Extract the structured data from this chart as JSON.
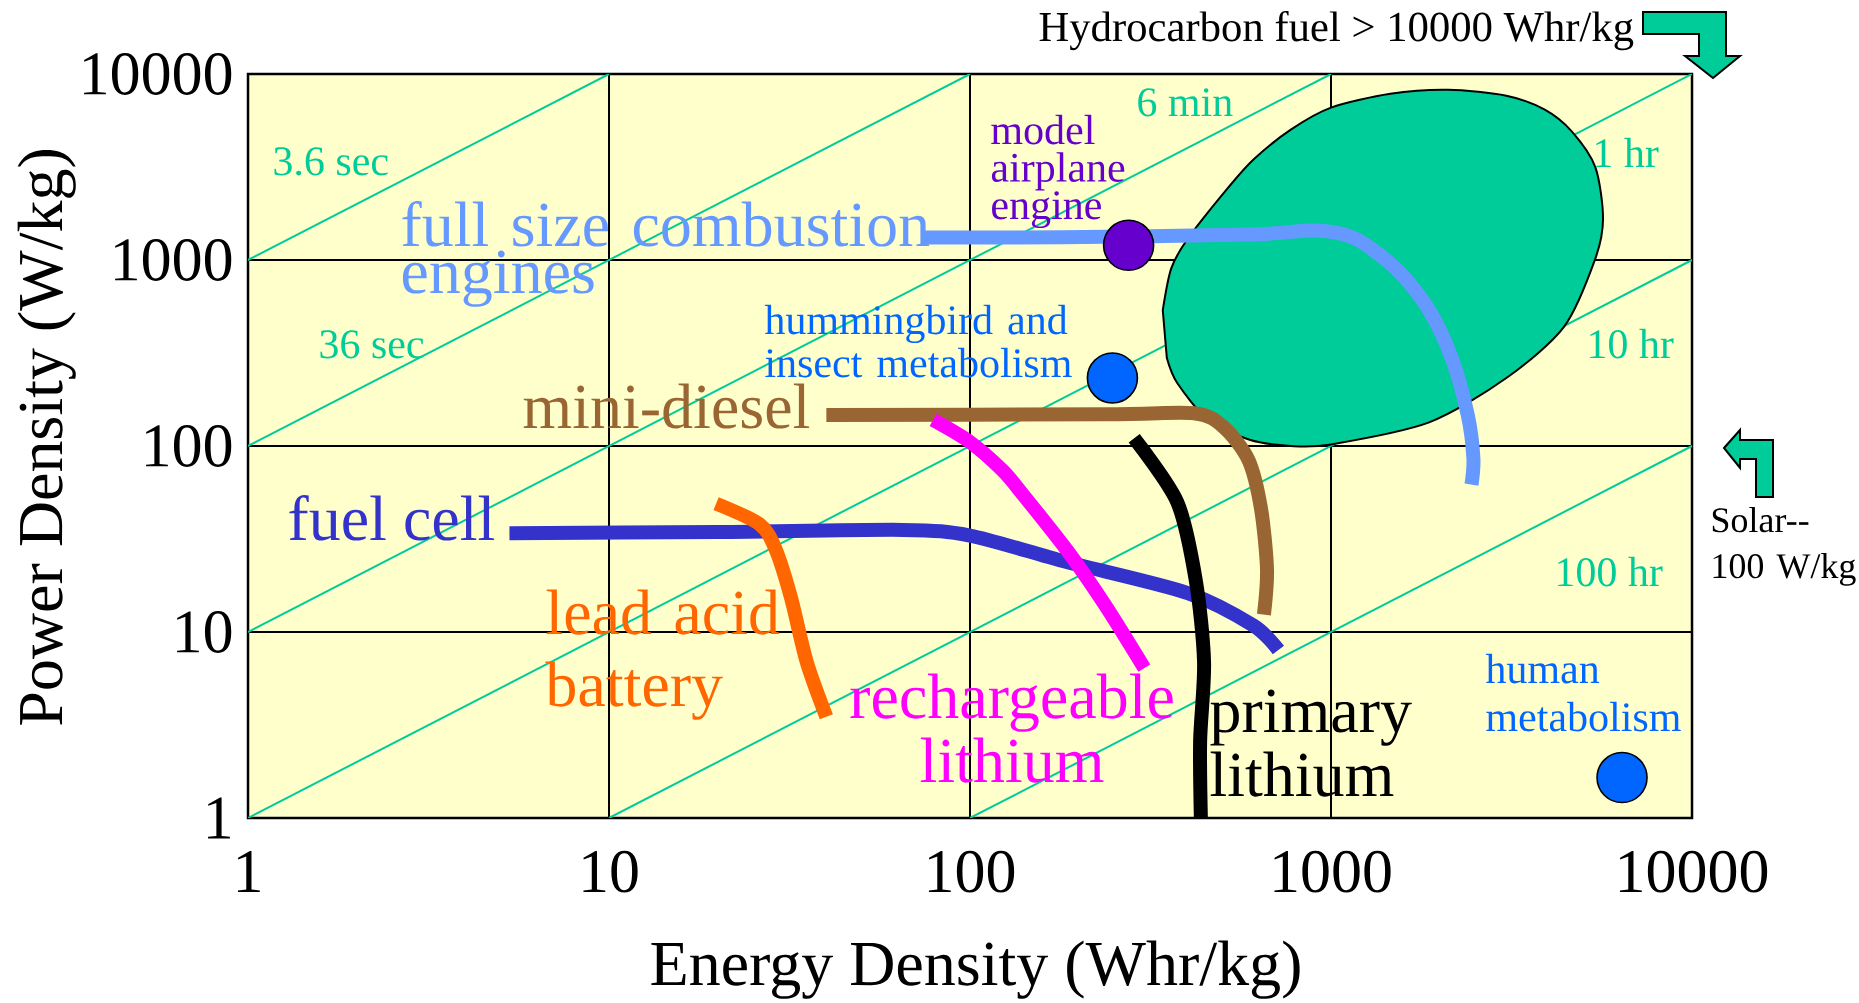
{
  "chart_data": {
    "type": "line",
    "xlabel": "Energy Density (Whr/kg)",
    "ylabel": "Power Density (W/kg)",
    "log": "xy",
    "xlim": [
      1,
      10000
    ],
    "ylim": [
      1,
      10000
    ],
    "xticks": [
      1,
      10,
      100,
      1000,
      10000
    ],
    "yticks": [
      1,
      10,
      100,
      1000,
      10000
    ],
    "grid": true,
    "annotations": [
      "Hydrocarbon fuel > 10000 Whr/kg",
      "Solar-- 100 W/kg"
    ],
    "series": [
      {
        "name": "3.6 sec",
        "color": "#00cc99",
        "x": [
          1,
          10
        ],
        "values": [
          1000,
          10000
        ]
      },
      {
        "name": "36 sec",
        "color": "#00cc99",
        "x": [
          1,
          100
        ],
        "values": [
          100,
          10000
        ]
      },
      {
        "name": "6 min",
        "color": "#00cc99",
        "x": [
          1,
          1000
        ],
        "values": [
          10,
          10000
        ]
      },
      {
        "name": "1 hr",
        "color": "#00cc99",
        "x": [
          1,
          10000
        ],
        "values": [
          1,
          10000
        ]
      },
      {
        "name": "10 hr",
        "color": "#00cc99",
        "x": [
          10,
          10000
        ],
        "values": [
          1,
          1000
        ]
      },
      {
        "name": "100 hr",
        "color": "#00cc99",
        "x": [
          100,
          10000
        ],
        "values": [
          1,
          100
        ]
      },
      {
        "type": "area",
        "color": "#00cc99",
        "x": [
          342,
          361,
          401,
          521,
          611,
          774,
          1000,
          1460,
          2110,
          3060,
          3910,
          4650,
          5400,
          5670,
          5400,
          4430,
          3060,
          1870,
          1000,
          774,
          595,
          457,
          375,
          351
        ],
        "values": [
          537,
          901,
          1300,
          2470,
          3480,
          5020,
          6590,
          7820,
          8220,
          7640,
          6430,
          4900,
          3150,
          1670,
          1020,
          440,
          232,
          134,
          102,
          100,
          108,
          138,
          218,
          297
        ]
      },
      {
        "name": "fuel cell",
        "color": "#3333cc",
        "x": [
          5.3,
          20,
          65,
          100,
          182,
          401,
          611,
          715
        ],
        "values": [
          34,
          34.5,
          35.4,
          33,
          24,
          16.2,
          10.8,
          8
        ]
      },
      {
        "name": "mini-diesel",
        "color": "#996633",
        "x": [
          40,
          237,
          417,
          505,
          591,
          640,
          665,
          652
        ],
        "values": [
          147,
          148,
          150,
          126,
          84,
          46,
          21.6,
          12.4
        ]
      },
      {
        "name": "lead acid battery",
        "color": "#ff6600",
        "x": [
          19.8,
          26.1,
          28.9,
          31.9,
          35.3,
          40
        ],
        "values": [
          49,
          38,
          28,
          15.4,
          6.9,
          3.5
        ]
      },
      {
        "name": "rechargeable lithium",
        "color": "#ff00ff",
        "x": [
          79,
          100,
          123,
          140,
          187,
          237,
          304
        ],
        "values": [
          138,
          105,
          74,
          55,
          27,
          13.9,
          6.4
        ]
      },
      {
        "name": "primary lithium",
        "color": "#000000",
        "x": [
          285,
          375,
          422,
          445,
          434,
          436
        ],
        "values": [
          110,
          50,
          19,
          6.9,
          2.6,
          1
        ]
      },
      {
        "name": "full size combustion engines",
        "color": "#6699ff",
        "x": [
          74,
          180,
          594,
          906,
          1170,
          1530,
          1870,
          2160,
          2390,
          2480,
          2450
        ],
        "values": [
          1320,
          1325,
          1370,
          1440,
          1300,
          880,
          537,
          297,
          148,
          86,
          62
        ]
      },
      {
        "name": "model airplane engine",
        "type": "scatter",
        "marker": "circle",
        "color": "#6600cc",
        "x": [
          275
        ],
        "values": [
          1200
        ]
      },
      {
        "name": "hummingbird and insect metabolism",
        "type": "scatter",
        "marker": "circle",
        "color": "#0066ff",
        "x": [
          248
        ],
        "values": [
          232
        ]
      },
      {
        "name": "human metabolism",
        "type": "scatter",
        "marker": "circle",
        "color": "#0066ff",
        "x": [
          6400
        ],
        "values": [
          1.65
        ]
      }
    ]
  }
}
